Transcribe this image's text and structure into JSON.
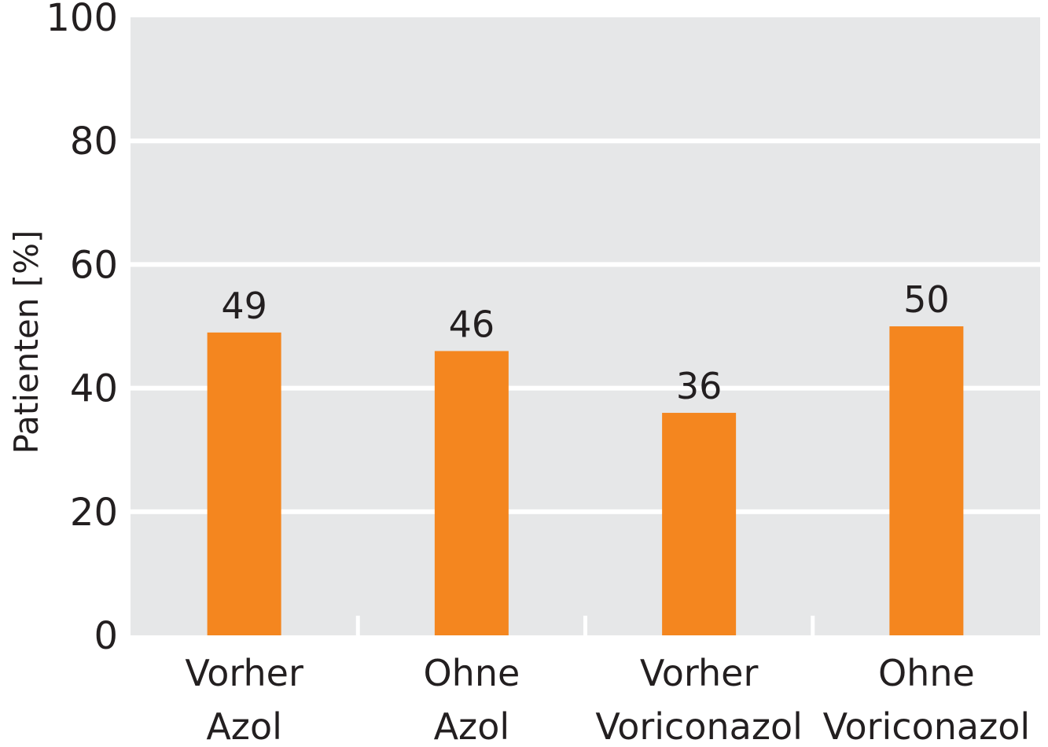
{
  "chart_data": {
    "type": "bar",
    "categories": [
      [
        "Vorher",
        "Azol"
      ],
      [
        "Ohne",
        "Azol"
      ],
      [
        "Vorher",
        "Voriconazol"
      ],
      [
        "Ohne",
        "Voriconazol"
      ]
    ],
    "values": [
      49,
      46,
      36,
      50
    ],
    "data_labels": [
      "49",
      "46",
      "36",
      "50"
    ],
    "title": "",
    "xlabel": "",
    "ylabel": "Patienten [%]",
    "ylim": [
      0,
      100
    ],
    "yticks": [
      0,
      20,
      40,
      60,
      80,
      100
    ],
    "ytick_labels": [
      "0",
      "20",
      "40",
      "60",
      "80",
      "100"
    ],
    "grid": true,
    "legend": "none",
    "colors": {
      "bar": "#f4861f",
      "plot_background": "#e6e7e8",
      "gridline": "#ffffff",
      "text": "#231f20"
    }
  }
}
